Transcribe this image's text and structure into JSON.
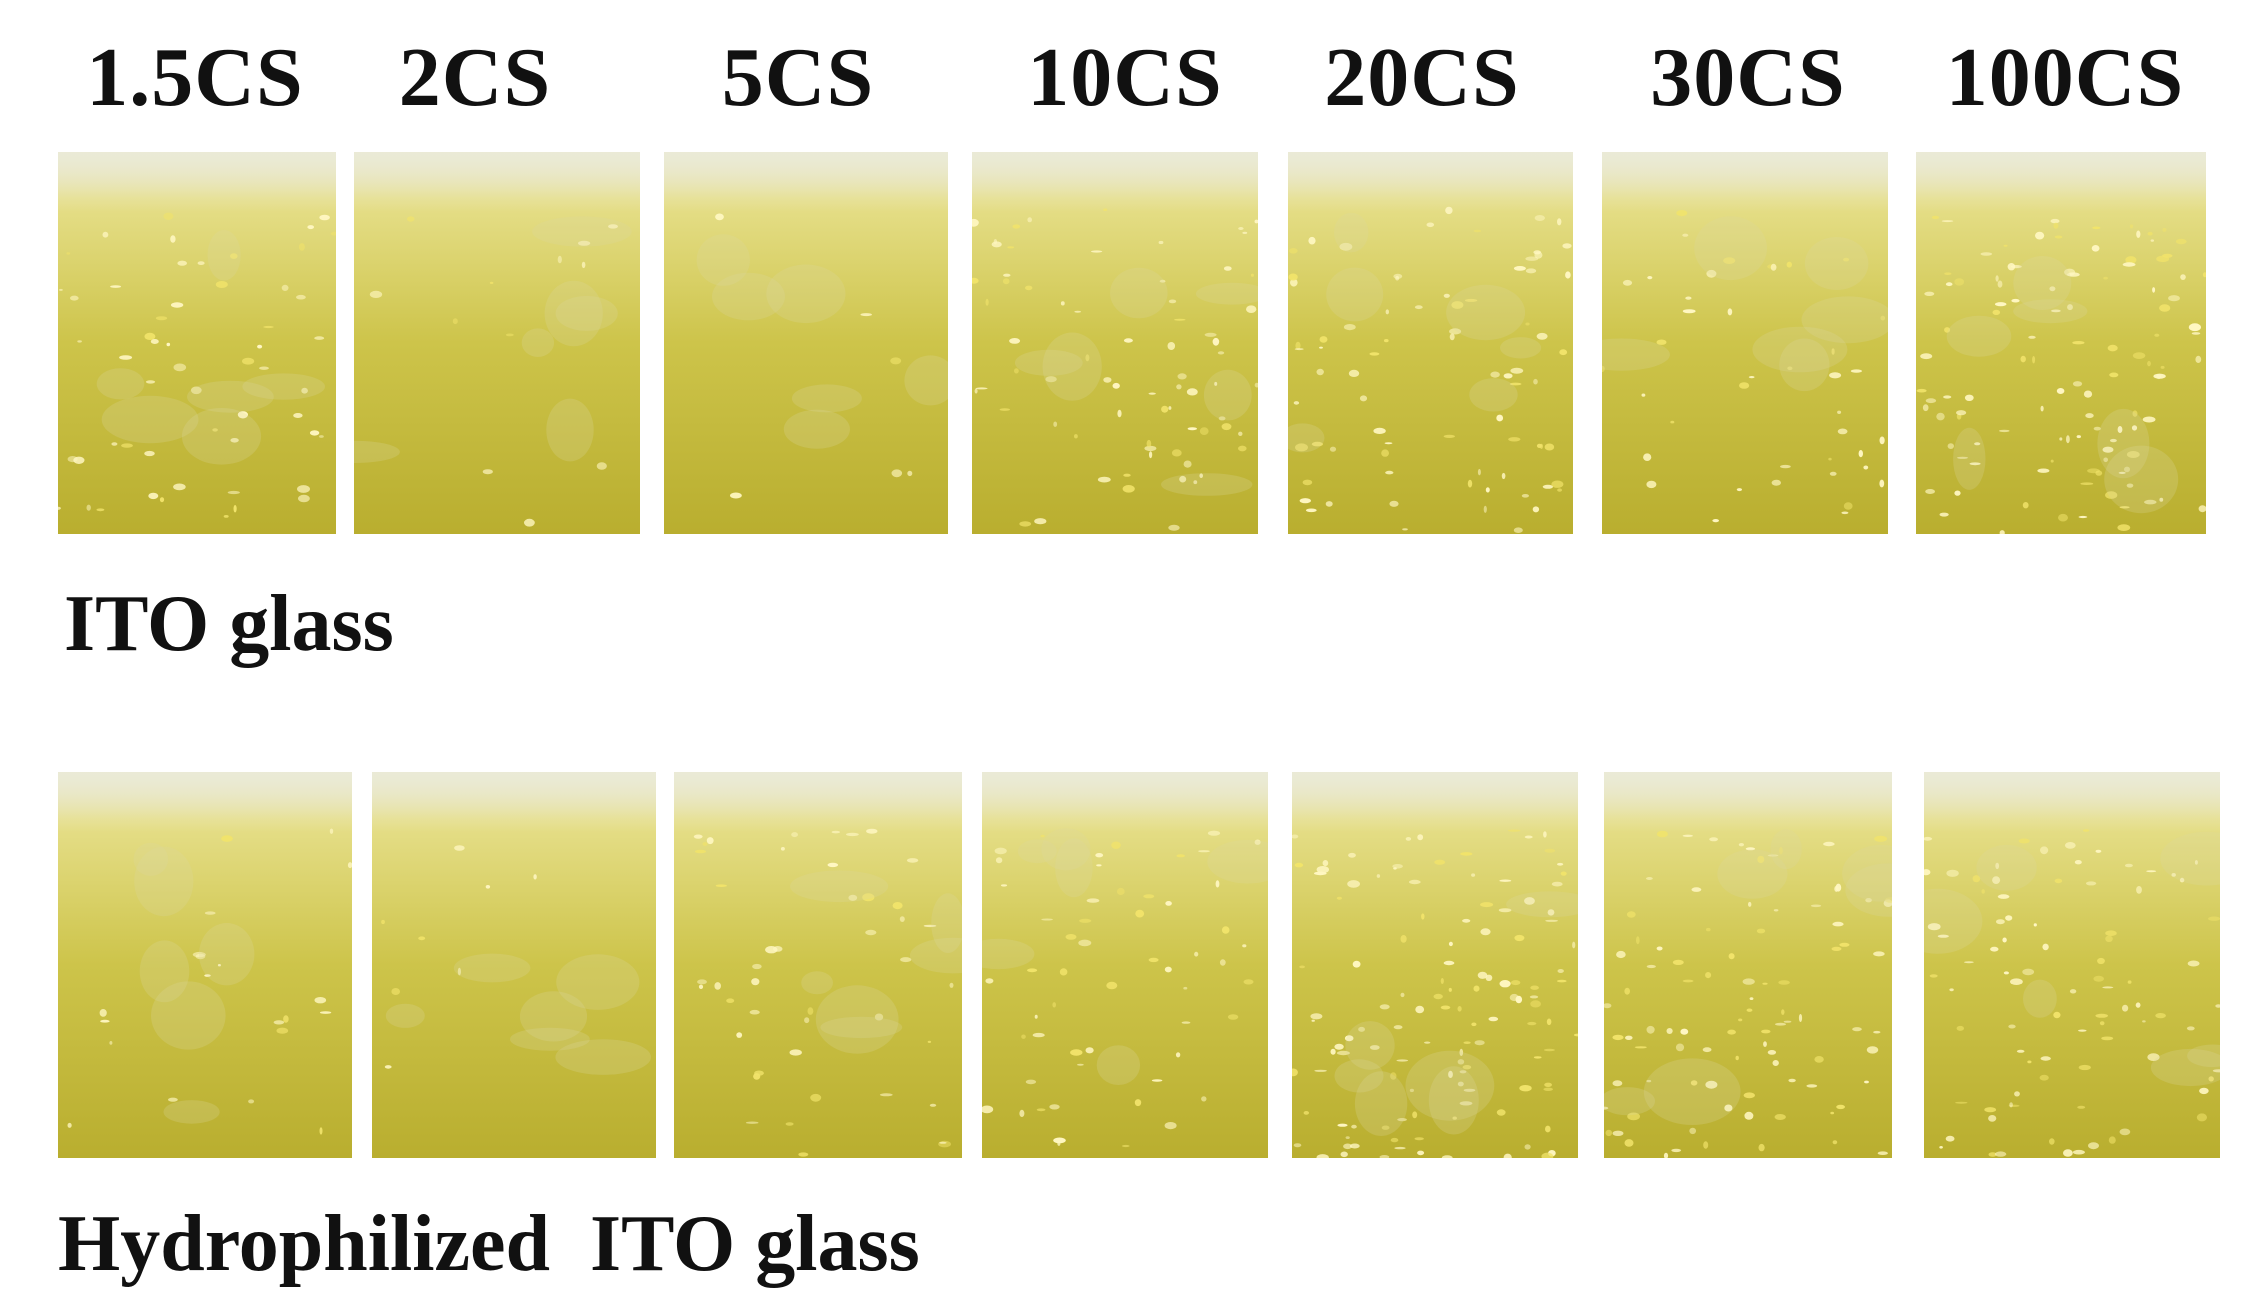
{
  "columns": [
    "1.5CS",
    "2CS",
    "5CS",
    "10CS",
    "20CS",
    "30CS",
    "100CS"
  ],
  "rows": [
    {
      "label": "ITO glass"
    },
    {
      "label": "Hydrophilized  ITO glass"
    }
  ],
  "colors": {
    "film_base": "#cdc44a",
    "film_dark": "#b9ae2f",
    "film_light": "#e6df8a",
    "sparkle": "#fff7c2",
    "clear_edge": "#e8e6d2"
  }
}
